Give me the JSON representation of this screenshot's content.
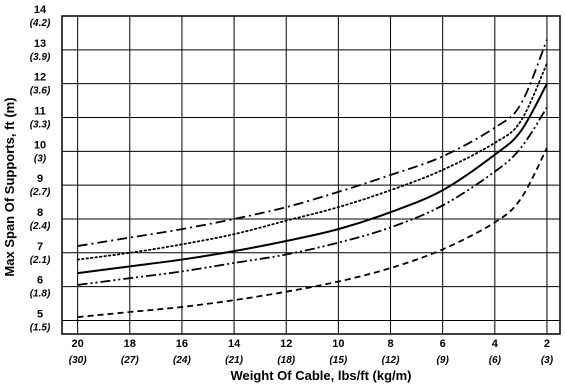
{
  "chart_data": {
    "type": "line",
    "title": "",
    "xlabel": "Weight Of Cable, lbs/ft (kg/m)",
    "ylabel": "Max Span Of Supports, ft (m)",
    "xlim": [
      20.6,
      1.5
    ],
    "ylim": [
      4.6,
      14
    ],
    "x_ticks": [
      {
        "value": 20,
        "label": "20",
        "sub": "(30)"
      },
      {
        "value": 18,
        "label": "18",
        "sub": "(27)"
      },
      {
        "value": 16,
        "label": "16",
        "sub": "(24)"
      },
      {
        "value": 14,
        "label": "14",
        "sub": "(21)"
      },
      {
        "value": 12,
        "label": "12",
        "sub": "(18)"
      },
      {
        "value": 10,
        "label": "10",
        "sub": "(15)"
      },
      {
        "value": 8,
        "label": "8",
        "sub": "(12)"
      },
      {
        "value": 6,
        "label": "6",
        "sub": "(9)"
      },
      {
        "value": 4,
        "label": "4",
        "sub": "(6)"
      },
      {
        "value": 2,
        "label": "2",
        "sub": "(3)"
      }
    ],
    "y_ticks": [
      {
        "value": 14,
        "label": "14",
        "sub": "(4.2)"
      },
      {
        "value": 13,
        "label": "13",
        "sub": "(3.9)"
      },
      {
        "value": 12,
        "label": "12",
        "sub": "(3.6)"
      },
      {
        "value": 11,
        "label": "11",
        "sub": "(3.3)"
      },
      {
        "value": 10,
        "label": "10",
        "sub": "(3)"
      },
      {
        "value": 9,
        "label": "9",
        "sub": "(2.7)"
      },
      {
        "value": 8,
        "label": "8",
        "sub": "(2.4)"
      },
      {
        "value": 7,
        "label": "7",
        "sub": "(2.1)"
      },
      {
        "value": 6,
        "label": "6",
        "sub": "(1.8)"
      },
      {
        "value": 5,
        "label": "5",
        "sub": "(1.5)"
      }
    ],
    "grid": true,
    "series": [
      {
        "style": "dash-dot",
        "x": [
          20,
          18,
          16,
          14,
          12,
          10,
          8,
          6,
          4,
          3,
          2
        ],
        "y": [
          7.2,
          7.45,
          7.7,
          8.0,
          8.35,
          8.8,
          9.3,
          9.85,
          10.7,
          11.4,
          13.3
        ]
      },
      {
        "style": "dotted",
        "x": [
          20,
          18,
          16,
          14,
          12,
          10,
          8,
          6,
          4,
          3,
          2
        ],
        "y": [
          6.8,
          7.0,
          7.25,
          7.55,
          7.95,
          8.35,
          8.85,
          9.45,
          10.25,
          10.9,
          12.6
        ]
      },
      {
        "style": "solid",
        "x": [
          20,
          18,
          16,
          14,
          12,
          10,
          8,
          6,
          4,
          3,
          2
        ],
        "y": [
          6.4,
          6.6,
          6.8,
          7.05,
          7.35,
          7.7,
          8.2,
          8.85,
          9.9,
          10.6,
          12.0
        ]
      },
      {
        "style": "dash-dot-dot",
        "x": [
          20,
          18,
          16,
          14,
          12,
          10,
          8,
          6,
          4,
          3,
          2
        ],
        "y": [
          6.05,
          6.25,
          6.45,
          6.7,
          6.95,
          7.3,
          7.75,
          8.4,
          9.4,
          10.1,
          11.3
        ]
      },
      {
        "style": "dashed",
        "x": [
          20,
          18,
          16,
          14,
          12,
          10,
          8,
          6,
          4,
          3,
          2
        ],
        "y": [
          5.1,
          5.25,
          5.4,
          5.6,
          5.85,
          6.15,
          6.55,
          7.1,
          7.9,
          8.6,
          10.1
        ]
      }
    ]
  }
}
